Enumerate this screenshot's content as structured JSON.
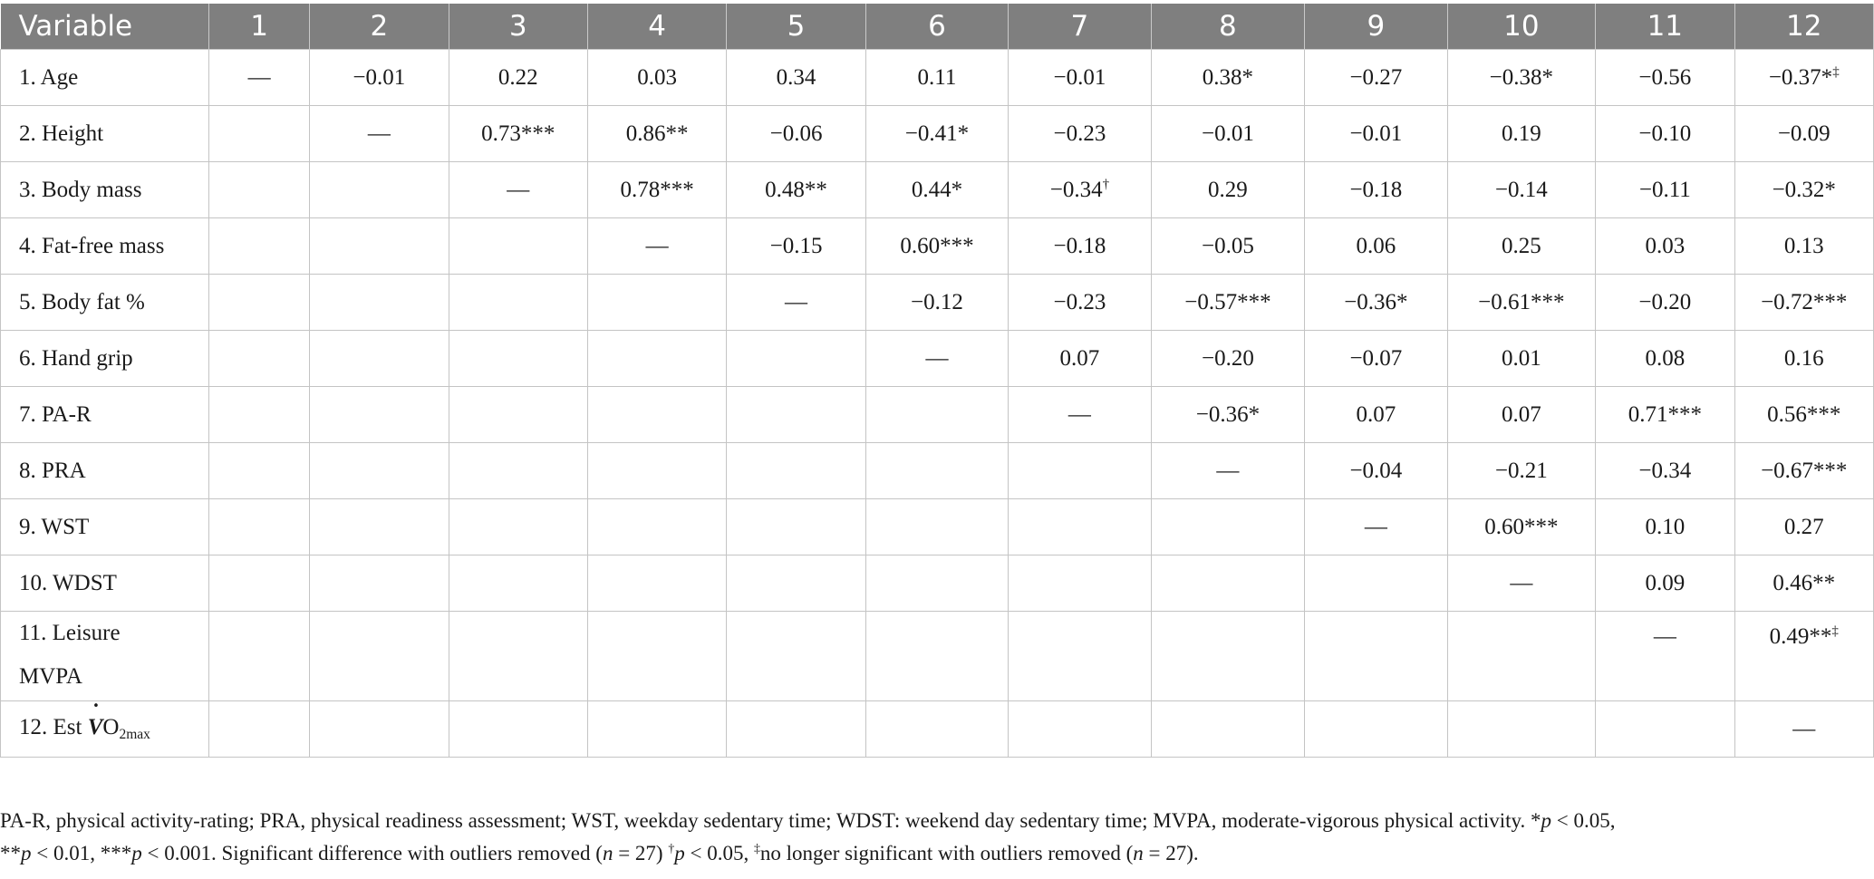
{
  "table": {
    "headers": [
      "Variable",
      "1",
      "2",
      "3",
      "4",
      "5",
      "6",
      "7",
      "8",
      "9",
      "10",
      "11",
      "12"
    ],
    "rows": [
      {
        "label": "1. Age",
        "cells": [
          "—",
          "−0.01",
          "0.22",
          "0.03",
          "0.34",
          "0.11",
          "−0.01",
          "0.38*",
          "−0.27",
          "−0.38*",
          "−0.56",
          "−0.37*‡"
        ]
      },
      {
        "label": "2. Height",
        "cells": [
          "",
          "—",
          "0.73***",
          "0.86**",
          "−0.06",
          "−0.41*",
          "−0.23",
          "−0.01",
          "−0.01",
          "0.19",
          "−0.10",
          "−0.09"
        ]
      },
      {
        "label": "3. Body mass",
        "cells": [
          "",
          "",
          "—",
          "0.78***",
          "0.48**",
          "0.44*",
          "−0.34†",
          "0.29",
          "−0.18",
          "−0.14",
          "−0.11",
          "−0.32*"
        ]
      },
      {
        "label": "4. Fat-free mass",
        "cells": [
          "",
          "",
          "",
          "—",
          "−0.15",
          "0.60***",
          "−0.18",
          "−0.05",
          "0.06",
          "0.25",
          "0.03",
          "0.13"
        ]
      },
      {
        "label": "5. Body fat %",
        "cells": [
          "",
          "",
          "",
          "",
          "—",
          "−0.12",
          "−0.23",
          "−0.57***",
          "−0.36*",
          "−0.61***",
          "−0.20",
          "−0.72***"
        ]
      },
      {
        "label": "6. Hand grip",
        "cells": [
          "",
          "",
          "",
          "",
          "",
          "—",
          "0.07",
          "−0.20",
          "−0.07",
          "0.01",
          "0.08",
          "0.16"
        ]
      },
      {
        "label": "7. PA-R",
        "cells": [
          "",
          "",
          "",
          "",
          "",
          "",
          "—",
          "−0.36*",
          "0.07",
          "0.07",
          "0.71***",
          "0.56***"
        ]
      },
      {
        "label": "8. PRA",
        "cells": [
          "",
          "",
          "",
          "",
          "",
          "",
          "",
          "—",
          "−0.04",
          "−0.21",
          "−0.34",
          "−0.67***"
        ]
      },
      {
        "label": "9. WST",
        "cells": [
          "",
          "",
          "",
          "",
          "",
          "",
          "",
          "",
          "—",
          "0.60***",
          "0.10",
          "0.27"
        ]
      },
      {
        "label": "10. WDST",
        "cells": [
          "",
          "",
          "",
          "",
          "",
          "",
          "",
          "",
          "",
          "—",
          "0.09",
          "0.46**"
        ]
      },
      {
        "label": "11. Leisure MVPA",
        "cells": [
          "",
          "",
          "",
          "",
          "",
          "",
          "",
          "",
          "",
          "",
          "—",
          "0.49**‡"
        ]
      },
      {
        "label": "12. Est V̇O2max",
        "cells": [
          "",
          "",
          "",
          "",
          "",
          "",
          "",
          "",
          "",
          "",
          "",
          "—"
        ]
      }
    ]
  },
  "row12": {
    "prefix": "12. Est ",
    "v": "V",
    "dot": "˙",
    "o": "O",
    "sub": "2max"
  },
  "footnote": {
    "line1": "PA-R, physical activity-rating; PRA, physical readiness assessment; WST, weekday sedentary time; WDST: weekend day sedentary time; MVPA, moderate-vigorous physical activity. *p < 0.05,",
    "line2": "**p < 0.01, ***p < 0.001. Significant difference with outliers removed (n = 27) †p < 0.05, ‡no longer significant with outliers removed (n = 27)."
  }
}
